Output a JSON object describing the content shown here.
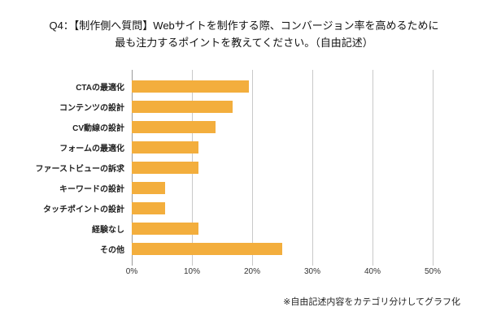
{
  "header": {
    "title_line1": "Q4：【制作側へ質問】Webサイトを制作する際、コンバージョン率を高めるために",
    "title_line2": "最も注力するポイントを教えてください。（自由記述）"
  },
  "footer": {
    "note": "※自由記述内容をカテゴリ分けしてグラフ化"
  },
  "chart_data": {
    "type": "bar",
    "orientation": "horizontal",
    "title": "Q4：【制作側へ質問】Webサイトを制作する際、コンバージョン率を高めるために最も注力するポイントを教えてください。（自由記述）",
    "categories": [
      "CTAの最適化",
      "コンテンツの設計",
      "CV動線の設計",
      "フォームの最適化",
      "ファーストビューの訴求",
      "キーワードの設計",
      "タッチポイントの設計",
      "経験なし",
      "その他"
    ],
    "values": [
      19.4,
      16.7,
      13.9,
      11.1,
      11.1,
      5.6,
      5.6,
      11.1,
      25.0
    ],
    "unit": "%",
    "xlabel": "",
    "ylabel": "",
    "xlim": [
      0,
      50
    ],
    "x_ticks": [
      "0%",
      "10%",
      "20%",
      "30%",
      "40%",
      "50%"
    ],
    "bar_color": "#F3AE3D",
    "grid": true,
    "legend": "none",
    "annotation": "※自由記述内容をカテゴリ分けしてグラフ化"
  }
}
